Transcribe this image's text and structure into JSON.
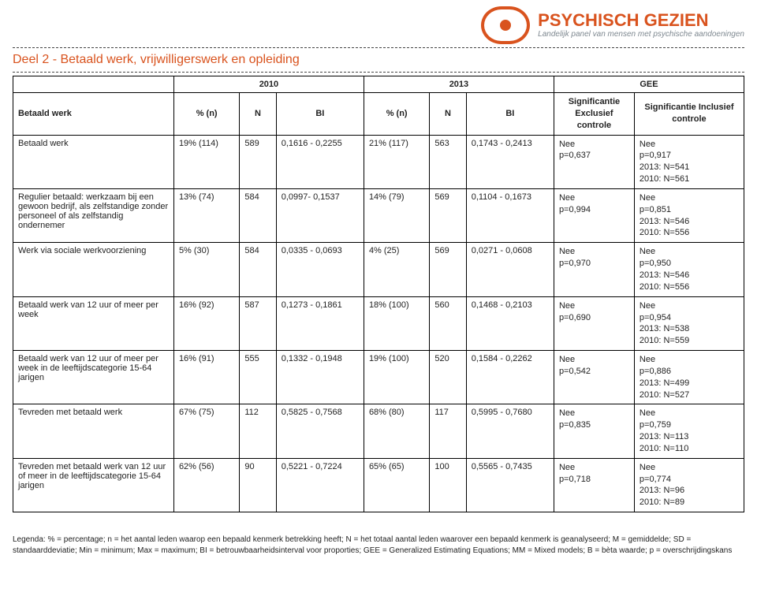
{
  "header": {
    "brand": "PSYCHISCH GEZIEN",
    "tagline": "Landelijk panel van mensen met psychische aandoeningen"
  },
  "section_title": "Deel 2 - Betaald werk, vrijwilligerswerk en opleiding",
  "table": {
    "group_headers": {
      "year1": "2010",
      "year2": "2013",
      "gee": "GEE"
    },
    "sub_headers": {
      "label": "Betaald werk",
      "pn": "% (n)",
      "n": "N",
      "bi": "BI",
      "sig1": "Significantie Exclusief controle",
      "sig2": "Significantie Inclusief controle"
    },
    "rows": [
      {
        "label": "Betaald werk",
        "pn1": "19% (114)",
        "n1": "589",
        "bi1": "0,1616 - 0,2255",
        "pn2": "21% (117)",
        "n2": "563",
        "bi2": "0,1743 - 0,2413",
        "sig1": "Nee\np=0,637",
        "sig2": "Nee\np=0,917\n2013: N=541\n2010: N=561"
      },
      {
        "label": "Regulier betaald: werkzaam bij een gewoon bedrijf, als zelfstandige zonder personeel of als zelfstandig ondernemer",
        "pn1": "13% (74)",
        "n1": "584",
        "bi1": "0,0997- 0,1537",
        "pn2": "14% (79)",
        "n2": "569",
        "bi2": "0,1104 - 0,1673",
        "sig1": "Nee\np=0,994",
        "sig2": "Nee\np=0,851\n2013: N=546\n2010: N=556"
      },
      {
        "label": "Werk via sociale werkvoorziening",
        "pn1": "5% (30)",
        "n1": "584",
        "bi1": "0,0335 - 0,0693",
        "pn2": "4% (25)",
        "n2": "569",
        "bi2": "0,0271 - 0,0608",
        "sig1": "Nee\np=0,970",
        "sig2": "Nee\np=0,950\n2013: N=546\n2010: N=556"
      },
      {
        "label": "Betaald werk van 12 uur of meer per week",
        "pn1": "16% (92)",
        "n1": "587",
        "bi1": "0,1273 - 0,1861",
        "pn2": "18% (100)",
        "n2": "560",
        "bi2": "0,1468 - 0,2103",
        "sig1": "Nee\np=0,690",
        "sig2": "Nee\np=0,954\n2013: N=538\n2010: N=559"
      },
      {
        "label": "Betaald werk van 12 uur of meer per week in de leeftijdscategorie 15-64 jarigen",
        "pn1": "16% (91)",
        "n1": "555",
        "bi1": "0,1332 - 0,1948",
        "pn2": "19% (100)",
        "n2": "520",
        "bi2": "0,1584 - 0,2262",
        "sig1": "Nee\np=0,542",
        "sig2": "Nee\np=0,886\n2013: N=499\n2010: N=527"
      },
      {
        "label": "Tevreden met betaald werk",
        "pn1": "67% (75)",
        "n1": "112",
        "bi1": "0,5825 - 0,7568",
        "pn2": "68% (80)",
        "n2": "117",
        "bi2": "0,5995 - 0,7680",
        "sig1": "Nee\np=0,835",
        "sig2": "Nee\np=0,759\n2013: N=113\n2010: N=110"
      },
      {
        "label": "Tevreden met betaald werk van 12 uur of meer in de leeftijdscategorie 15-64 jarigen",
        "pn1": "62% (56)",
        "n1": "90",
        "bi1": "0,5221 - 0,7224",
        "pn2": "65% (65)",
        "n2": "100",
        "bi2": "0,5565 - 0,7435",
        "sig1": "Nee\np=0,718",
        "sig2": "Nee\np=0,774\n2013: N=96\n2010: N=89"
      }
    ]
  },
  "legend": "Legenda: % = percentage; n = het aantal leden waarop een bepaald kenmerk betrekking heeft; N = het totaal aantal leden waarover een bepaald kenmerk is geanalyseerd; M = gemiddelde; SD = standaarddeviatie; Min = minimum; Max = maximum; BI = betrouwbaarheidsinterval voor proporties; GEE = Generalized Estimating Equations; MM = Mixed models;   B = bèta waarde; p = overschrijdingskans"
}
